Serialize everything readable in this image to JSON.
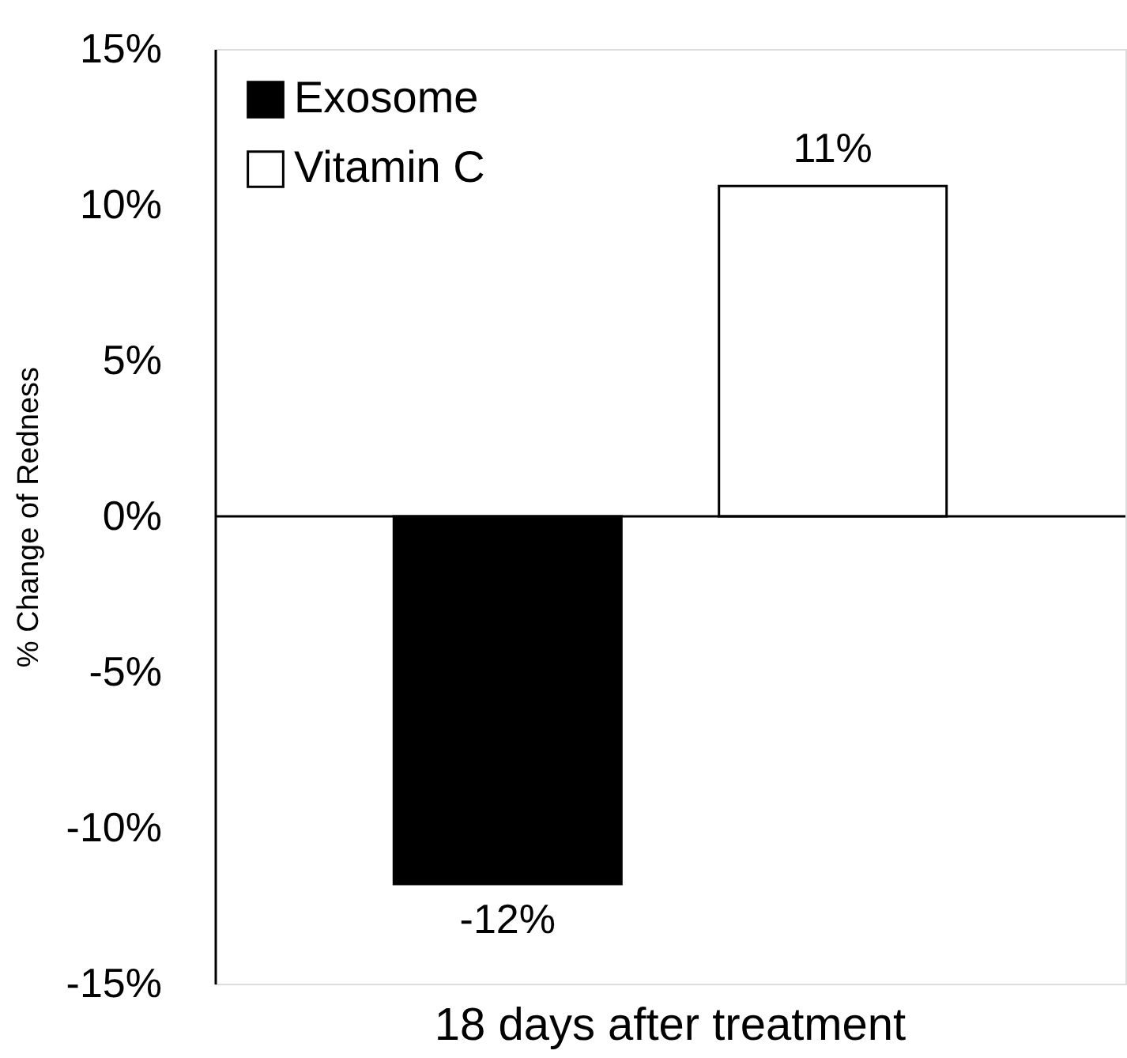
{
  "chart_data": {
    "type": "bar",
    "ylabel": "% Change of Redness",
    "categories": [
      "18 days after treatment"
    ],
    "series": [
      {
        "name": "Exosome",
        "color": "#000000",
        "values": [
          -11.8
        ],
        "value_labels": [
          "-12%"
        ]
      },
      {
        "name": "Vitamin C",
        "color": "#ffffff",
        "values": [
          10.6
        ],
        "value_labels": [
          "11%"
        ]
      }
    ],
    "ylim": [
      -15,
      15
    ],
    "yticks": [
      {
        "value": -15,
        "label": "-15%"
      },
      {
        "value": -10,
        "label": "-10%"
      },
      {
        "value": -5,
        "label": "-5%"
      },
      {
        "value": 0,
        "label": "0%"
      },
      {
        "value": 5,
        "label": "5%"
      },
      {
        "value": 10,
        "label": "10%"
      },
      {
        "value": 15,
        "label": "15%"
      }
    ],
    "legend": "top left"
  }
}
